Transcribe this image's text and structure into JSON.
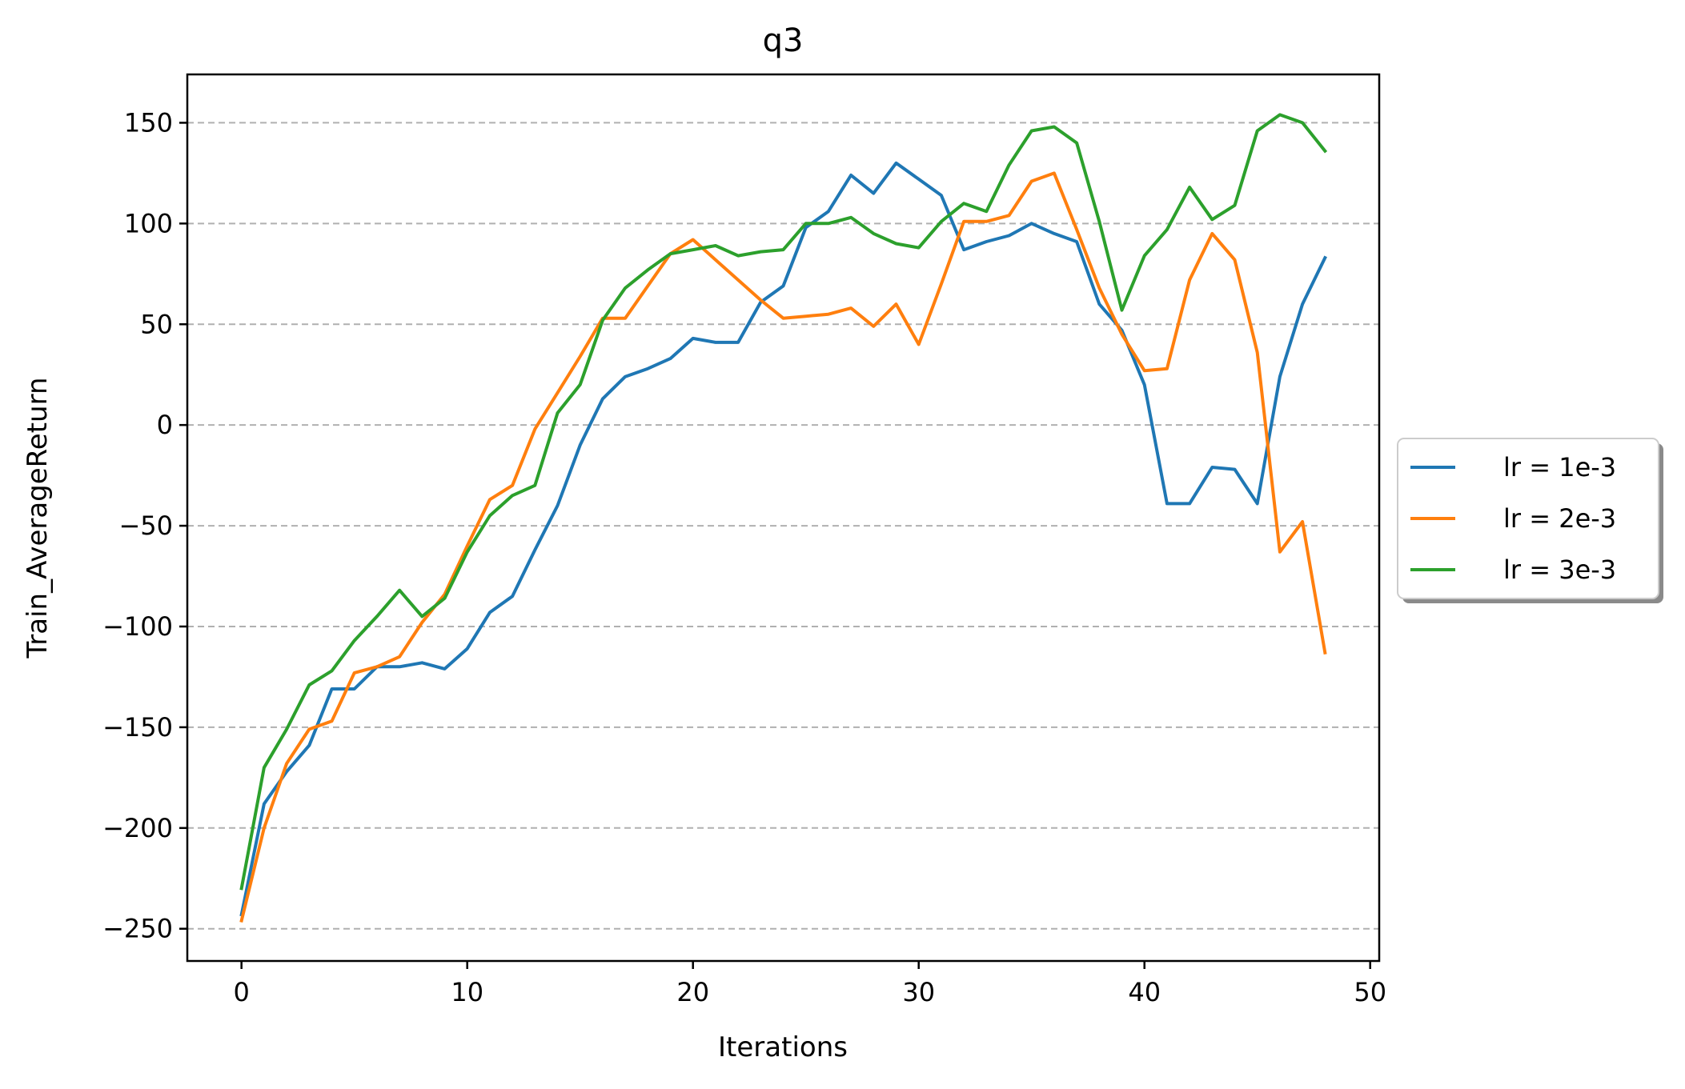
{
  "chart_data": {
    "type": "line",
    "title": "q3",
    "xlabel": "Iterations",
    "ylabel": "Train_AverageReturn",
    "xlim": [
      -2.4,
      50.4
    ],
    "ylim": [
      -266,
      174
    ],
    "xticks": [
      0,
      10,
      20,
      30,
      40,
      50
    ],
    "xtick_labels": [
      "0",
      "10",
      "20",
      "30",
      "40",
      "50"
    ],
    "yticks": [
      150,
      100,
      50,
      0,
      -50,
      -100,
      -150,
      -200,
      -250
    ],
    "ytick_labels": [
      "150",
      "100",
      "50",
      "0",
      "−50",
      "−100",
      "−150",
      "−200",
      "−250"
    ],
    "grid": "horizontal dashed",
    "legend_position": "right, outside plot",
    "x": [
      0,
      1,
      2,
      3,
      4,
      5,
      6,
      7,
      8,
      9,
      10,
      11,
      12,
      13,
      14,
      15,
      16,
      17,
      18,
      19,
      20,
      21,
      22,
      23,
      24,
      25,
      26,
      27,
      28,
      29,
      30,
      31,
      32,
      33,
      34,
      35,
      36,
      37,
      38,
      39,
      40,
      41,
      42,
      43,
      44,
      45,
      46,
      47,
      48
    ],
    "series": [
      {
        "name": "lr = 1e-3",
        "color": "#1f77b4",
        "values": [
          -243,
          -188,
          -172,
          -159,
          -131,
          -131,
          -120,
          -120,
          -118,
          -121,
          -111,
          -93,
          -85,
          -62,
          -40,
          -10,
          13,
          24,
          28,
          33,
          43,
          41,
          41,
          61,
          69,
          98,
          106,
          124,
          115,
          130,
          122,
          114,
          87,
          91,
          94,
          100,
          95,
          91,
          60,
          47,
          20,
          -39,
          -39,
          -21,
          -22,
          -39,
          24,
          60,
          83
        ]
      },
      {
        "name": "lr = 2e-3",
        "color": "#ff7f0e",
        "values": [
          -246,
          -200,
          -168,
          -151,
          -147,
          -123,
          -120,
          -115,
          -98,
          -84,
          -60,
          -37,
          -30,
          -2,
          16,
          34,
          53,
          53,
          69,
          85,
          92,
          82,
          72,
          62,
          53,
          54,
          55,
          58,
          49,
          60,
          40,
          70,
          101,
          101,
          104,
          121,
          125,
          97,
          68,
          45,
          27,
          28,
          72,
          95,
          82,
          36,
          -63,
          -48,
          -113
        ]
      },
      {
        "name": "lr = 3e-3",
        "color": "#2ca02c",
        "values": [
          -230,
          -170,
          -151,
          -129,
          -122,
          -107,
          -95,
          -82,
          -95,
          -86,
          -63,
          -45,
          -35,
          -30,
          6,
          20,
          52,
          68,
          77,
          85,
          87,
          89,
          84,
          86,
          87,
          100,
          100,
          103,
          95,
          90,
          88,
          101,
          110,
          106,
          129,
          146,
          148,
          140,
          101,
          57,
          84,
          97,
          118,
          102,
          109,
          146,
          154,
          150,
          136
        ]
      }
    ]
  }
}
